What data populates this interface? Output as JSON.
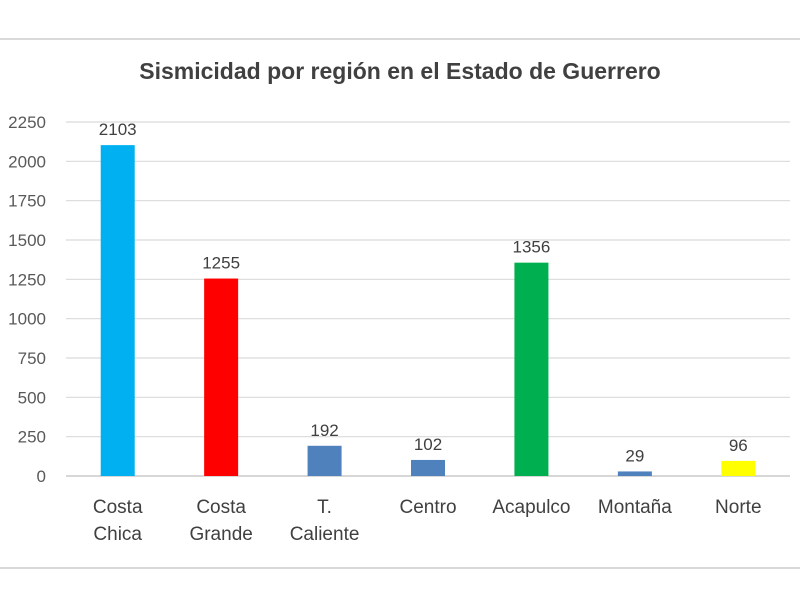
{
  "chart_data": {
    "type": "bar",
    "title": "Sismicidad por región en el Estado de Guerrero",
    "categories": [
      [
        "Costa",
        "Chica"
      ],
      [
        "Costa",
        "Grande"
      ],
      [
        "T.",
        "Caliente"
      ],
      [
        "Centro"
      ],
      [
        "Acapulco"
      ],
      [
        "Montaña"
      ],
      [
        "Norte"
      ]
    ],
    "values": [
      2103,
      1255,
      192,
      102,
      1356,
      29,
      96
    ],
    "bar_colors": [
      "#00b0f0",
      "#ff0000",
      "#4f81bd",
      "#4f81bd",
      "#00b050",
      "#4f81bd",
      "#ffff00"
    ],
    "yticks": [
      0,
      250,
      500,
      750,
      1000,
      1250,
      1500,
      1750,
      2000,
      2250
    ],
    "ylim": [
      0,
      2250
    ],
    "grid": true,
    "legend": "none"
  }
}
